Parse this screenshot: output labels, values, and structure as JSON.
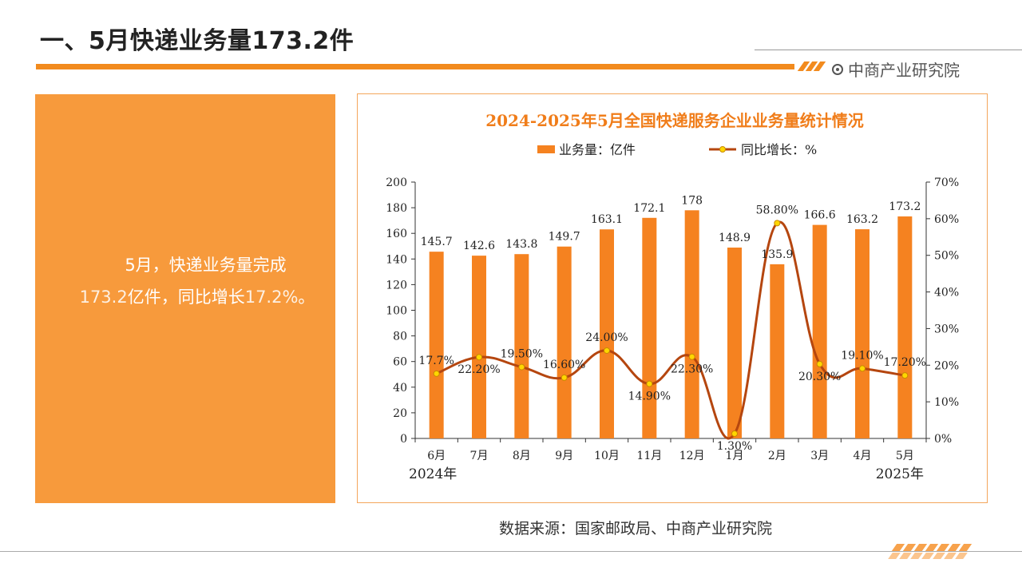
{
  "page": {
    "title": "一、5月快递业务量173.2件",
    "brand": "中商产业研究院",
    "summary_line1": "5月，快递业务量完成",
    "summary_line2_num": "173.2",
    "summary_line2_text": "亿件，同比增长",
    "summary_line2_pct": "17.2%",
    "summary_line2_end": "。",
    "source": "数据来源：国家邮政局、中商产业研究院",
    "accent_color": "#f28b1e",
    "panel_color": "#f79a3c"
  },
  "chart_data": {
    "type": "bar",
    "title": "2024-2025年5月全国快递服务企业业务量统计情况",
    "categories": [
      "6月",
      "7月",
      "8月",
      "9月",
      "10月",
      "11月",
      "12月",
      "1月",
      "2月",
      "3月",
      "4月",
      "5月"
    ],
    "year_labels": {
      "left": "2024年",
      "right": "2025年"
    },
    "series": [
      {
        "name": "业务量：亿件",
        "type": "bar",
        "axis": "left",
        "color": "#f58220",
        "values": [
          145.7,
          142.6,
          143.8,
          149.7,
          163.1,
          172.1,
          178,
          148.9,
          135.9,
          166.6,
          163.2,
          173.2
        ],
        "labels": [
          "145.7",
          "142.6",
          "143.8",
          "149.7",
          "163.1",
          "172.1",
          "178",
          "148.9",
          "135.9",
          "166.6",
          "163.2",
          "173.2"
        ]
      },
      {
        "name": "同比增长：%",
        "type": "line",
        "axis": "right",
        "color": "#b5460f",
        "marker_color": "#ffd700",
        "values": [
          17.7,
          22.2,
          19.5,
          16.6,
          24.0,
          14.9,
          22.3,
          1.3,
          58.8,
          20.3,
          19.1,
          17.2
        ],
        "labels": [
          "17.7%",
          "22.20%",
          "19.50%",
          "16.60%",
          "24.00%",
          "14.90%",
          "22.30%",
          "1.30%",
          "58.80%",
          "20.30%",
          "19.10%",
          "17.20%"
        ]
      }
    ],
    "y_left": {
      "min": 0,
      "max": 200,
      "step": 20
    },
    "y_right": {
      "min": 0,
      "max": 70,
      "step": 10,
      "suffix": "%"
    },
    "legend": "top-center",
    "grid": false
  }
}
